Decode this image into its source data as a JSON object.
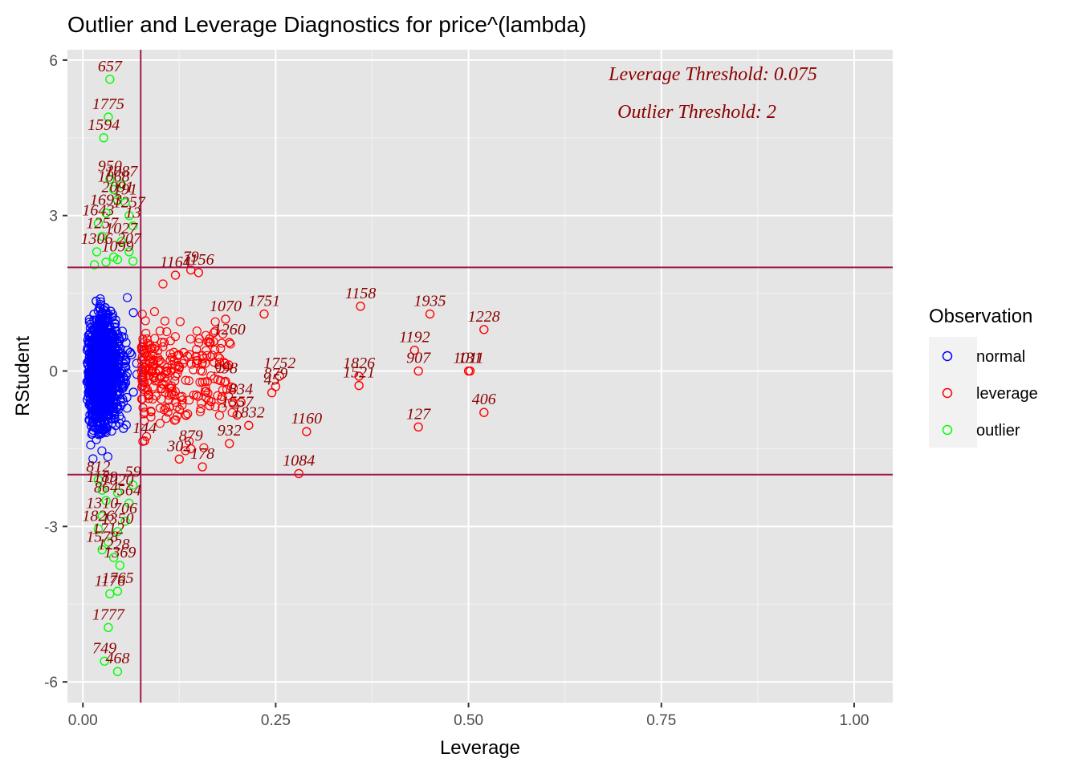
{
  "chart_data": {
    "type": "scatter",
    "title": "Outlier and Leverage Diagnostics for price^(lambda)",
    "xlabel": "Leverage",
    "ylabel": "RStudent",
    "xlim": [
      -0.02,
      1.05
    ],
    "ylim": [
      -6.4,
      6.2
    ],
    "x_ticks": [
      0,
      0.25,
      0.5,
      0.75,
      1.0
    ],
    "x_tick_labels": [
      "0.00",
      "0.25",
      "0.50",
      "0.75",
      "1.00"
    ],
    "y_ticks": [
      -6,
      -3,
      0,
      3,
      6
    ],
    "y_tick_labels": [
      "-6",
      "-3",
      "0",
      "3",
      "6"
    ],
    "grid": true,
    "legend_position": "right",
    "legend_title": "Observation",
    "legend_items": [
      {
        "label": "normal",
        "color": "#0000ff"
      },
      {
        "label": "leverage",
        "color": "#ff0000"
      },
      {
        "label": "outlier",
        "color": "#00ff00"
      }
    ],
    "annotations": [
      "Leverage Threshold: 0.075",
      "Outlier Threshold: 2"
    ],
    "leverage_threshold": 0.075,
    "outlier_threshold": 2,
    "threshold_color": "#a3174f",
    "label_color": "#8b0000",
    "normal_cloud": {
      "x_range": [
        0.005,
        0.07
      ],
      "y_range": [
        -1.95,
        1.95
      ],
      "count": 1500
    },
    "series": [
      {
        "name": "leverage",
        "color": "#ff0000",
        "points": [
          {
            "x": 0.36,
            "y": 1.25,
            "label": "1158"
          },
          {
            "x": 0.45,
            "y": 1.1,
            "label": "1935"
          },
          {
            "x": 0.52,
            "y": 0.8,
            "label": "1228"
          },
          {
            "x": 0.43,
            "y": 0.4,
            "label": "1192"
          },
          {
            "x": 0.435,
            "y": 0.0,
            "label": "907"
          },
          {
            "x": 0.5,
            "y": 0.0,
            "label": "1011"
          },
          {
            "x": 0.502,
            "y": 0.0,
            "label": "131"
          },
          {
            "x": 0.52,
            "y": -0.8,
            "label": "406"
          },
          {
            "x": 0.435,
            "y": -1.08,
            "label": "127"
          },
          {
            "x": 0.358,
            "y": -0.1,
            "label": "1826"
          },
          {
            "x": 0.358,
            "y": -0.28,
            "label": "1521"
          },
          {
            "x": 0.29,
            "y": -1.17,
            "label": "1160"
          },
          {
            "x": 0.28,
            "y": -1.98,
            "label": "1084"
          },
          {
            "x": 0.235,
            "y": 1.1,
            "label": "1751"
          },
          {
            "x": 0.255,
            "y": -0.1,
            "label": "1752"
          },
          {
            "x": 0.25,
            "y": -0.3,
            "label": "879"
          },
          {
            "x": 0.245,
            "y": -0.42,
            "label": "45"
          },
          {
            "x": 0.19,
            "y": 0.55,
            "label": "1260"
          },
          {
            "x": 0.2,
            "y": -0.85,
            "label": "1557"
          },
          {
            "x": 0.19,
            "y": -1.4,
            "label": "932"
          },
          {
            "x": 0.155,
            "y": -1.85,
            "label": "178"
          },
          {
            "x": 0.215,
            "y": -1.05,
            "label": "1832"
          },
          {
            "x": 0.185,
            "y": 1.0,
            "label": "1070"
          },
          {
            "x": 0.12,
            "y": 1.85,
            "label": "1164"
          },
          {
            "x": 0.14,
            "y": 1.95,
            "label": "79"
          },
          {
            "x": 0.15,
            "y": 1.9,
            "label": "1156"
          },
          {
            "x": 0.08,
            "y": -1.35,
            "label": "144"
          },
          {
            "x": 0.125,
            "y": -1.7,
            "label": "302"
          },
          {
            "x": 0.14,
            "y": -1.5,
            "label": "879"
          },
          {
            "x": 0.185,
            "y": -0.2,
            "label": "998"
          },
          {
            "x": 0.205,
            "y": -0.6,
            "label": "834"
          }
        ]
      },
      {
        "name": "outlier",
        "color": "#00ff00",
        "points": [
          {
            "x": 0.035,
            "y": 5.63,
            "label": "657"
          },
          {
            "x": 0.033,
            "y": 4.9,
            "label": "1775"
          },
          {
            "x": 0.027,
            "y": 4.5,
            "label": "1594"
          },
          {
            "x": 0.035,
            "y": 3.7,
            "label": "950"
          },
          {
            "x": 0.05,
            "y": 3.6,
            "label": "1087"
          },
          {
            "x": 0.04,
            "y": 3.5,
            "label": "1068"
          },
          {
            "x": 0.045,
            "y": 3.3,
            "label": "2091"
          },
          {
            "x": 0.055,
            "y": 3.25,
            "label": "191"
          },
          {
            "x": 0.03,
            "y": 3.05,
            "label": "1693"
          },
          {
            "x": 0.06,
            "y": 3.0,
            "label": "1257"
          },
          {
            "x": 0.02,
            "y": 2.85,
            "label": "1643"
          },
          {
            "x": 0.065,
            "y": 2.8,
            "label": "13"
          },
          {
            "x": 0.025,
            "y": 2.6,
            "label": "1257"
          },
          {
            "x": 0.05,
            "y": 2.5,
            "label": "1027"
          },
          {
            "x": 0.018,
            "y": 2.3,
            "label": "1306"
          },
          {
            "x": 0.06,
            "y": 2.3,
            "label": "207"
          },
          {
            "x": 0.045,
            "y": 2.15,
            "label": "1099"
          },
          {
            "x": 0.015,
            "y": 2.05,
            "label": ""
          },
          {
            "x": 0.03,
            "y": 2.1,
            "label": ""
          },
          {
            "x": 0.04,
            "y": 2.2,
            "label": ""
          },
          {
            "x": 0.065,
            "y": 2.12,
            "label": ""
          },
          {
            "x": 0.02,
            "y": -2.1,
            "label": "812"
          },
          {
            "x": 0.065,
            "y": -2.2,
            "label": "59"
          },
          {
            "x": 0.025,
            "y": -2.3,
            "label": "1189"
          },
          {
            "x": 0.045,
            "y": -2.35,
            "label": "1020"
          },
          {
            "x": 0.03,
            "y": -2.5,
            "label": "864"
          },
          {
            "x": 0.06,
            "y": -2.55,
            "label": "564"
          },
          {
            "x": 0.025,
            "y": -2.8,
            "label": "1310"
          },
          {
            "x": 0.055,
            "y": -2.9,
            "label": "706"
          },
          {
            "x": 0.02,
            "y": -3.05,
            "label": "1826"
          },
          {
            "x": 0.045,
            "y": -3.1,
            "label": "1350"
          },
          {
            "x": 0.033,
            "y": -3.3,
            "label": "1712"
          },
          {
            "x": 0.025,
            "y": -3.45,
            "label": "1578"
          },
          {
            "x": 0.04,
            "y": -3.6,
            "label": "1228"
          },
          {
            "x": 0.048,
            "y": -3.75,
            "label": "1369"
          },
          {
            "x": 0.035,
            "y": -4.3,
            "label": "1176"
          },
          {
            "x": 0.045,
            "y": -4.25,
            "label": "1765"
          },
          {
            "x": 0.033,
            "y": -4.95,
            "label": "1777"
          },
          {
            "x": 0.028,
            "y": -5.6,
            "label": "749"
          },
          {
            "x": 0.045,
            "y": -5.8,
            "label": "468"
          }
        ]
      }
    ]
  }
}
